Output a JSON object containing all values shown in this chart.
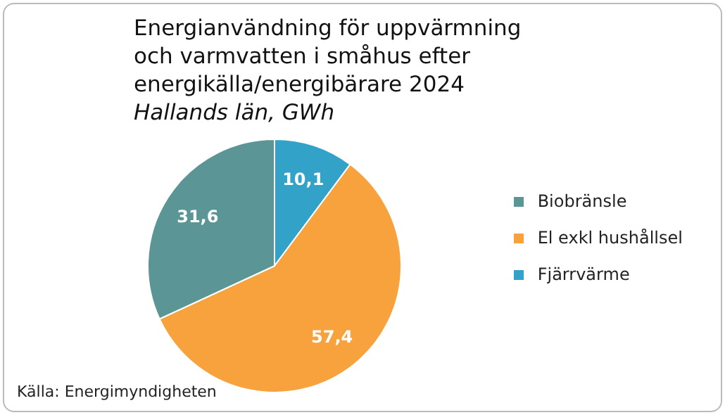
{
  "chart_data": {
    "type": "pie",
    "title": "Energianvändning för uppvärmning och varmvatten i småhus efter energikälla/energibärare 2024",
    "subtitle": "Hallands län, GWh",
    "categories": [
      "Fjärrvärme",
      "El exkl hushållsel",
      "Biobränsle"
    ],
    "values": [
      10.1,
      57.4,
      31.6
    ],
    "value_labels": [
      "10,1",
      "57,4",
      "31,6"
    ],
    "colors": [
      "#32a2c9",
      "#f7a23c",
      "#5b9595"
    ],
    "legend": "right",
    "annotations": [
      "Källa: Energimyndigheten"
    ]
  }
}
